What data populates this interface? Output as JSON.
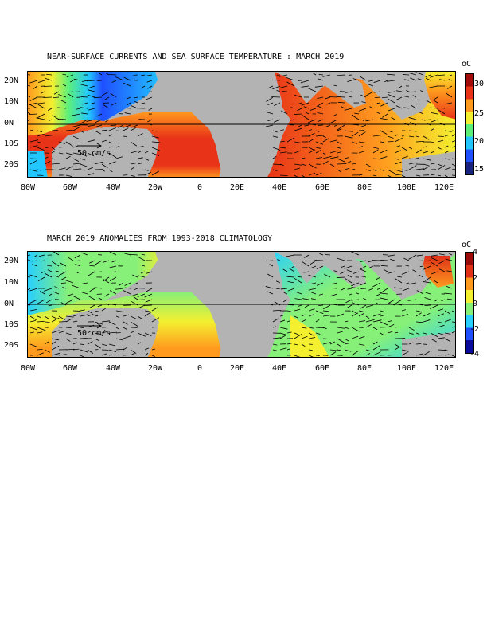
{
  "panel1": {
    "title": "NEAR-SURFACE CURRENTS AND SEA SURFACE TEMPERATURE : MARCH 2019",
    "unit": "oC",
    "colorbar_ticks": [
      "30",
      "25",
      "20",
      "15"
    ],
    "scale_label": "50 cm/s",
    "colors": [
      "#1a237e",
      "#1f4fff",
      "#22c7ff",
      "#5cf07a",
      "#f4f030",
      "#ff9a1e",
      "#e83318",
      "#a30a0a"
    ]
  },
  "panel2": {
    "title": "MARCH 2019 ANOMALIES FROM 1993-2018 CLIMATOLOGY",
    "unit": "oC",
    "colorbar_ticks": [
      "4",
      "2",
      "0",
      "-2",
      "-4"
    ],
    "scale_label": "50 cm/s",
    "colors": [
      "#0a0a9e",
      "#1f4fff",
      "#28d0ff",
      "#86f078",
      "#f4f030",
      "#ff9a1e",
      "#e03018",
      "#9c0a0a"
    ]
  },
  "axes": {
    "lat_labels": [
      "20N",
      "10N",
      "0N",
      "10S",
      "20S"
    ],
    "lon_labels": [
      "80W",
      "60W",
      "40W",
      "20W",
      "0",
      "20E",
      "40E",
      "60E",
      "80E",
      "100E",
      "120E"
    ]
  }
}
